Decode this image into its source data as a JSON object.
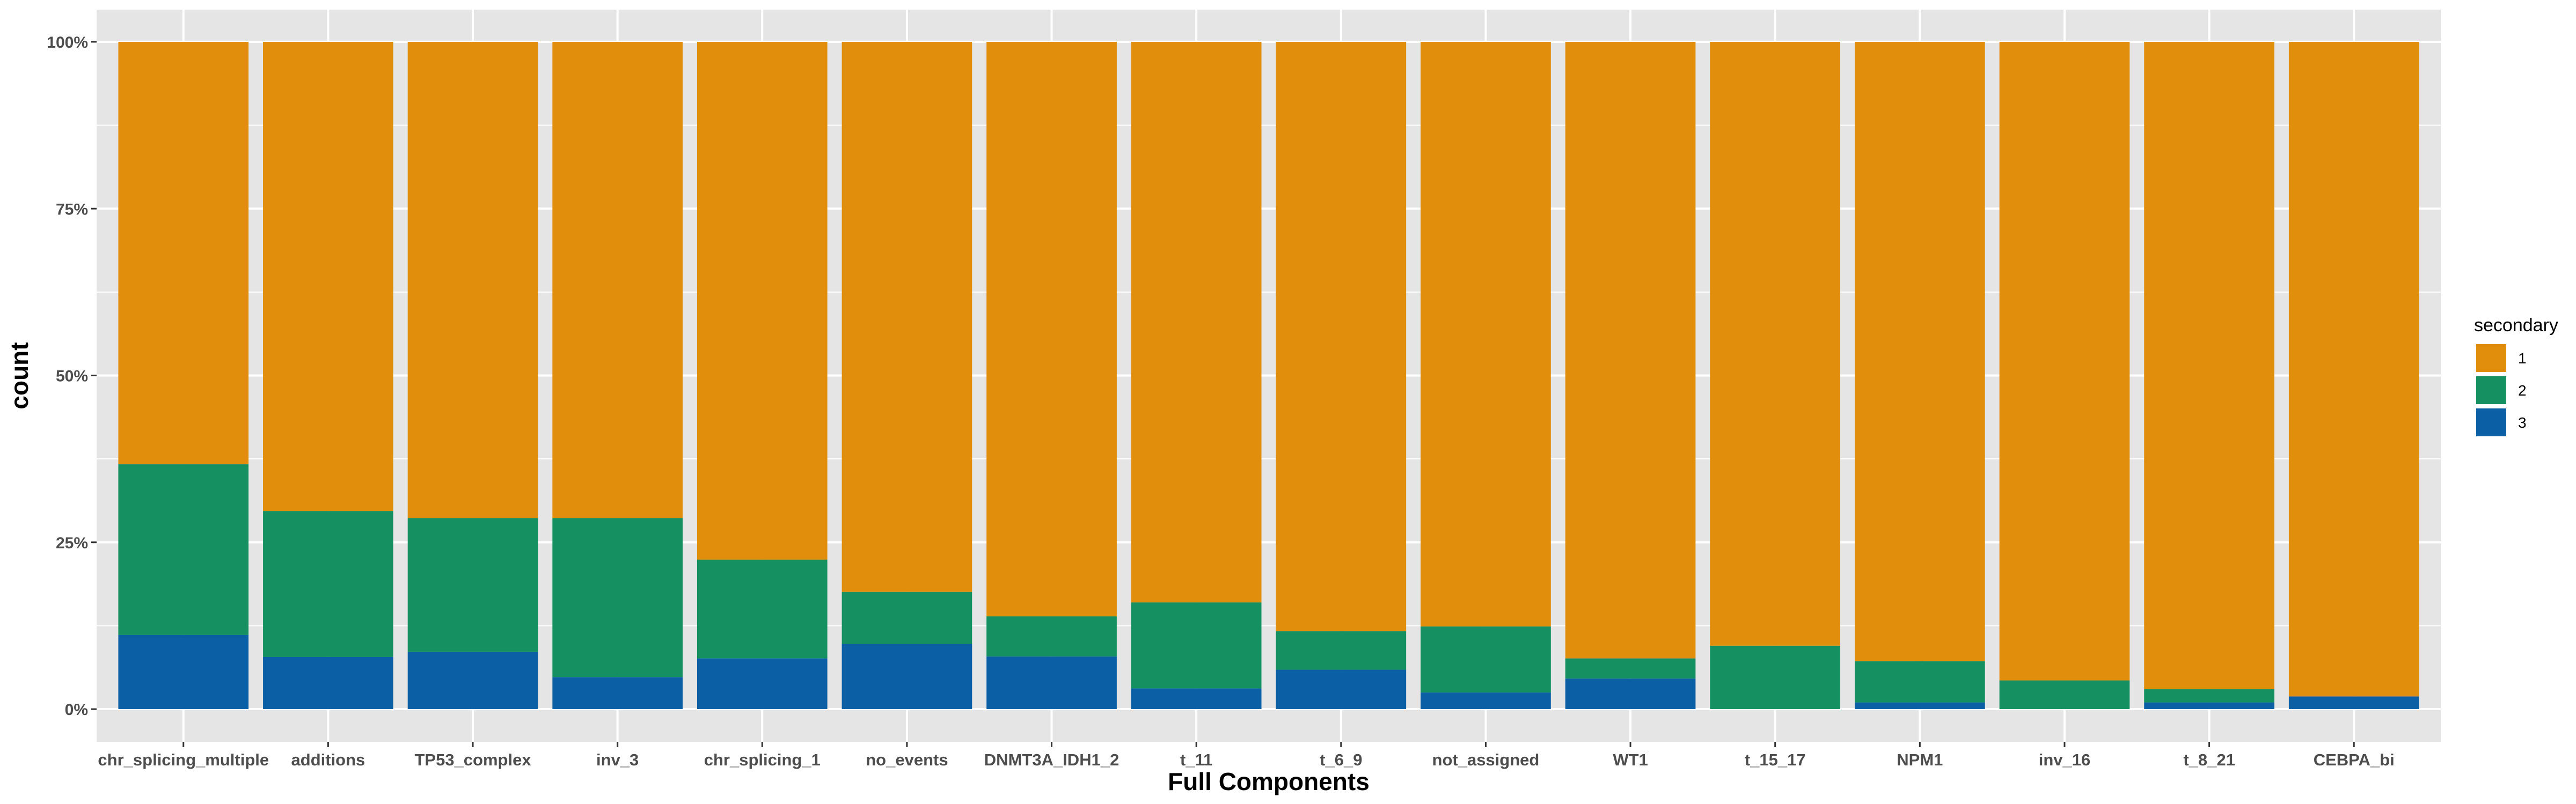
{
  "chart_data": {
    "type": "bar",
    "stacked": true,
    "normalized": true,
    "xlabel": "Full Components",
    "ylabel": "count",
    "ylim": [
      0,
      1
    ],
    "yticks": [
      0,
      0.25,
      0.5,
      0.75,
      1.0
    ],
    "ytick_labels": [
      "0%",
      "25%",
      "50%",
      "75%",
      "100%"
    ],
    "grid": true,
    "legend_position": "right",
    "legend_title": "secondary",
    "categories": [
      "chr_splicing_multiple",
      "additions",
      "TP53_complex",
      "inv_3",
      "chr_splicing_1",
      "no_events",
      "DNMT3A_IDH1_2",
      "t_11",
      "t_6_9",
      "not_assigned",
      "WT1",
      "t_15_17",
      "NPM1",
      "inv_16",
      "t_8_21",
      "CEBPA_bi"
    ],
    "series": [
      {
        "name": "1",
        "color": "#E08E0B",
        "values": [
          0.633,
          0.703,
          0.714,
          0.714,
          0.776,
          0.824,
          0.861,
          0.84,
          0.883,
          0.876,
          0.924,
          0.905,
          0.928,
          0.957,
          0.97,
          0.981
        ]
      },
      {
        "name": "2",
        "color": "#159061",
        "values": [
          0.256,
          0.219,
          0.2,
          0.238,
          0.148,
          0.078,
          0.06,
          0.129,
          0.058,
          0.099,
          0.03,
          0.095,
          0.062,
          0.043,
          0.02,
          0.0
        ]
      },
      {
        "name": "3",
        "color": "#0B5FA5",
        "values": [
          0.111,
          0.078,
          0.086,
          0.048,
          0.076,
          0.098,
          0.079,
          0.031,
          0.059,
          0.025,
          0.046,
          0.0,
          0.01,
          0.0,
          0.01,
          0.019
        ]
      }
    ],
    "colors": {
      "panel_background": "#E5E5E5",
      "grid": "#FFFFFF",
      "tick_text": "#4D4D4D"
    }
  }
}
